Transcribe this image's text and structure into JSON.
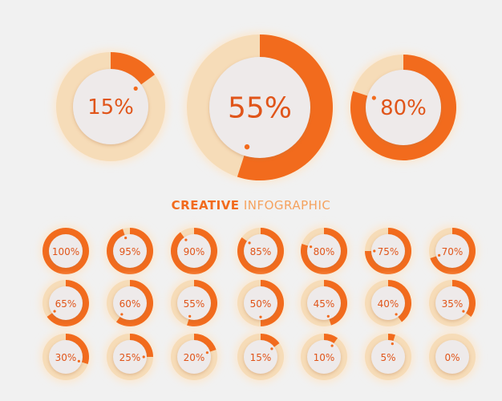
{
  "colors": {
    "background": "#f1f1f1",
    "accent": "#f26b1d",
    "track": "#f6dcb8",
    "glow": "#fbe7cf",
    "center": "#eeeaea",
    "text": "#e0551a",
    "subtitle_light": "#f5a25e"
  },
  "headline": {
    "strong": "CREATIVE",
    "light": "INFOGRAPHIC"
  },
  "chart_data": {
    "type": "pie",
    "large": [
      {
        "value": 15,
        "label": "15%"
      },
      {
        "value": 55,
        "label": "55%"
      },
      {
        "value": 80,
        "label": "80%"
      }
    ],
    "grid": [
      {
        "value": 100,
        "label": "100%"
      },
      {
        "value": 95,
        "label": "95%"
      },
      {
        "value": 90,
        "label": "90%"
      },
      {
        "value": 85,
        "label": "85%"
      },
      {
        "value": 80,
        "label": "80%"
      },
      {
        "value": 75,
        "label": "75%"
      },
      {
        "value": 70,
        "label": "70%"
      },
      {
        "value": 65,
        "label": "65%"
      },
      {
        "value": 60,
        "label": "60%"
      },
      {
        "value": 55,
        "label": "55%"
      },
      {
        "value": 50,
        "label": "50%"
      },
      {
        "value": 45,
        "label": "45%"
      },
      {
        "value": 40,
        "label": "40%"
      },
      {
        "value": 35,
        "label": "35%"
      },
      {
        "value": 30,
        "label": "30%"
      },
      {
        "value": 25,
        "label": "25%"
      },
      {
        "value": 20,
        "label": "20%"
      },
      {
        "value": 15,
        "label": "15%"
      },
      {
        "value": 10,
        "label": "10%"
      },
      {
        "value": 5,
        "label": "5%"
      },
      {
        "value": 0,
        "label": "0%"
      }
    ]
  }
}
